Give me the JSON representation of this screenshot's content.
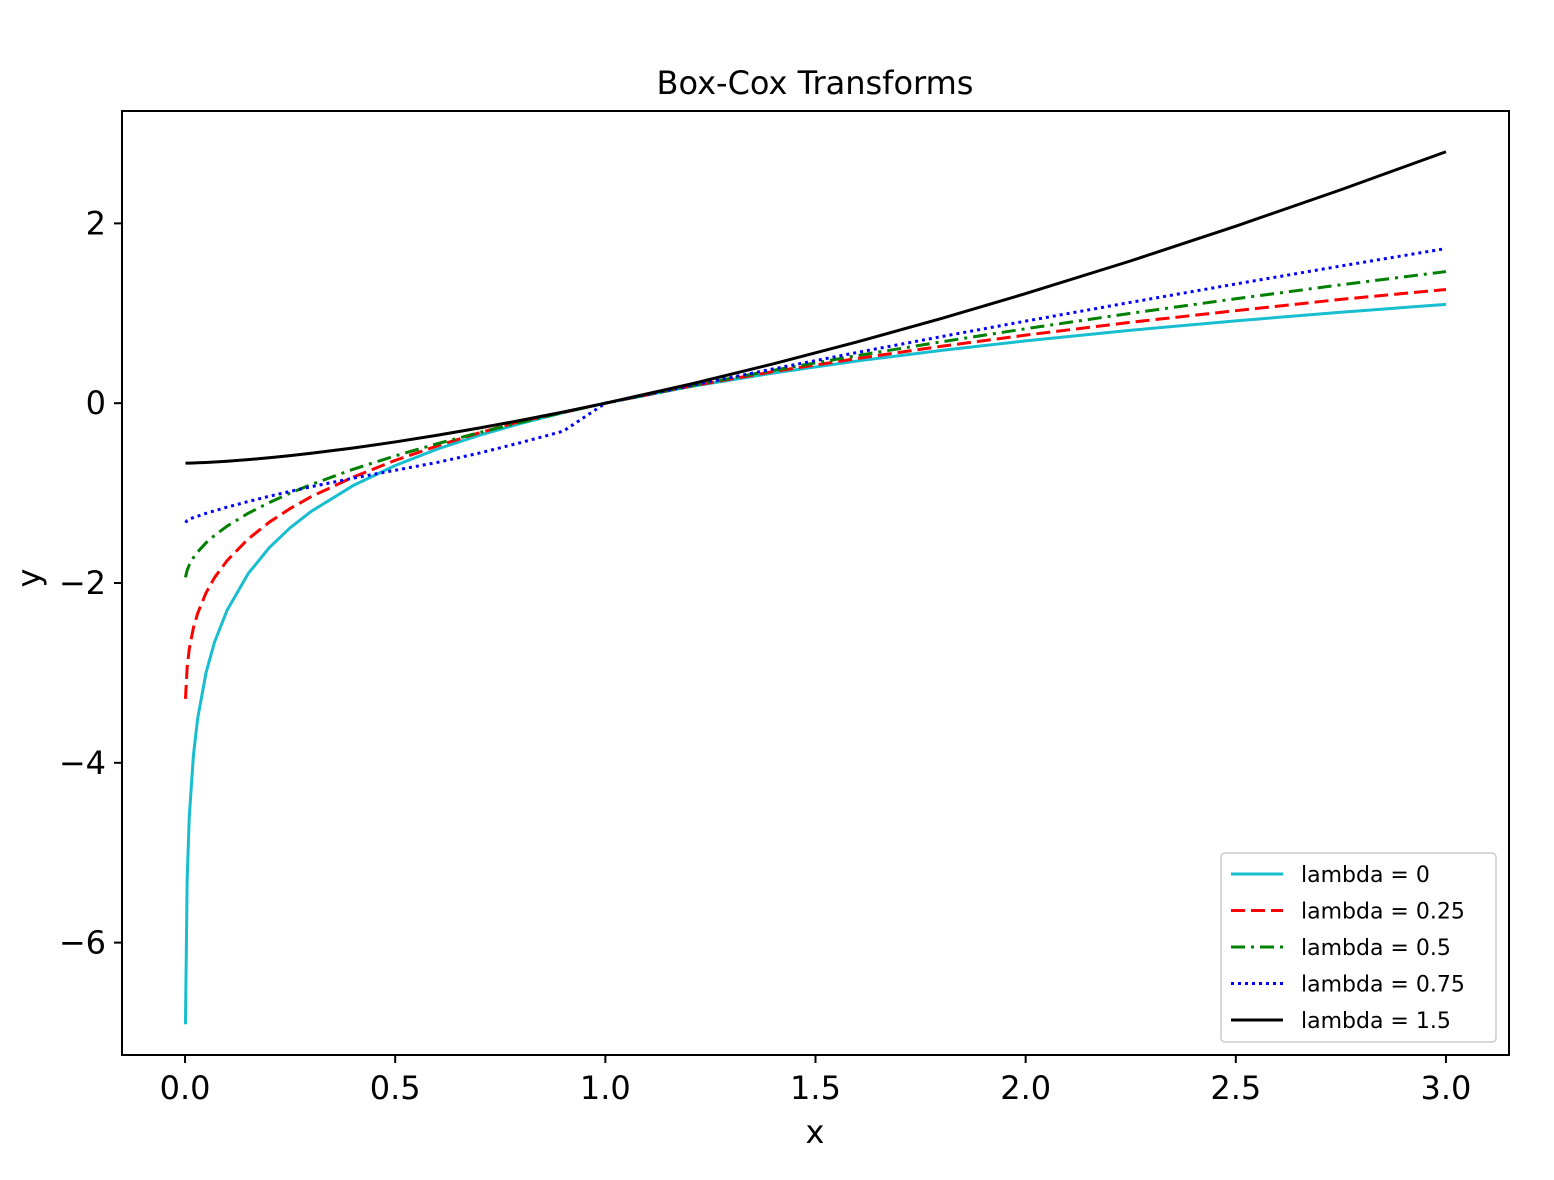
{
  "chart_data": {
    "type": "line",
    "title": "Box-Cox Transforms",
    "xlabel": "x",
    "ylabel": "y",
    "xlim": [
      -0.15,
      3.15
    ],
    "ylim": [
      -7.25,
      3.25
    ],
    "x_ticks": [
      {
        "value": 0.0,
        "label": "0.0"
      },
      {
        "value": 0.5,
        "label": "0.5"
      },
      {
        "value": 1.0,
        "label": "1.0"
      },
      {
        "value": 1.5,
        "label": "1.5"
      },
      {
        "value": 2.0,
        "label": "2.0"
      },
      {
        "value": 2.5,
        "label": "2.5"
      },
      {
        "value": 3.0,
        "label": "3.0"
      }
    ],
    "y_ticks": [
      {
        "value": -6,
        "label": "−6"
      },
      {
        "value": -4,
        "label": "−4"
      },
      {
        "value": -2,
        "label": "−2"
      },
      {
        "value": 0,
        "label": "0"
      },
      {
        "value": 2,
        "label": "2"
      }
    ],
    "grid": false,
    "legend_position": "lower-right",
    "x": [
      0.001,
      0.005,
      0.01,
      0.02,
      0.03,
      0.05,
      0.07,
      0.1,
      0.15,
      0.2,
      0.25,
      0.3,
      0.4,
      0.5,
      0.6,
      0.7,
      0.8,
      0.9,
      1.0,
      1.2,
      1.4,
      1.6,
      1.8,
      2.0,
      2.25,
      2.5,
      2.75,
      3.0
    ],
    "series": [
      {
        "name": "lambda = 0",
        "color": "#17becf",
        "style": "solid",
        "values": [
          -6.908,
          -5.298,
          -4.605,
          -3.912,
          -3.507,
          -2.996,
          -2.659,
          -2.303,
          -1.897,
          -1.609,
          -1.386,
          -1.204,
          -0.916,
          -0.693,
          -0.511,
          -0.357,
          -0.223,
          -0.105,
          0.0,
          0.182,
          0.336,
          0.47,
          0.588,
          0.693,
          0.811,
          0.916,
          1.012,
          1.099
        ]
      },
      {
        "name": "lambda = 0.25",
        "color": "#ff0000",
        "style": "dashed",
        "values": [
          -3.289,
          -2.941,
          -2.735,
          -2.496,
          -2.338,
          -2.109,
          -1.941,
          -1.751,
          -1.511,
          -1.325,
          -1.172,
          -1.04,
          -0.822,
          -0.636,
          -0.475,
          -0.33,
          -0.2,
          -0.103,
          0.0,
          0.187,
          0.352,
          0.498,
          0.633,
          0.757,
          0.9,
          1.029,
          1.155,
          1.265
        ]
      },
      {
        "name": "lambda = 0.5",
        "color": "#008000",
        "style": "dashdot",
        "values": [
          -1.937,
          -1.859,
          -1.8,
          -1.717,
          -1.654,
          -1.553,
          -1.471,
          -1.368,
          -1.225,
          -1.106,
          -1.0,
          -0.905,
          -0.735,
          -0.586,
          -0.451,
          -0.327,
          -0.211,
          -0.103,
          0.0,
          0.191,
          0.366,
          0.53,
          0.683,
          0.828,
          1.0,
          1.162,
          1.317,
          1.464
        ]
      },
      {
        "name": "lambda = 0.75",
        "color": "#0000ff",
        "style": "dotted",
        "values": [
          -1.328,
          -1.305,
          -1.291,
          -1.272,
          -1.257,
          -1.225,
          -1.197,
          -1.156,
          -1.094,
          -1.036,
          -0.981,
          -0.929,
          -0.834,
          -0.746,
          -0.659,
          -0.555,
          -0.437,
          -0.311,
          0.0,
          0.194,
          0.382,
          0.565,
          0.741,
          0.913,
          1.122,
          1.326,
          1.526,
          1.72
        ]
      },
      {
        "name": "lambda = 1.5",
        "color": "#000000",
        "style": "solid",
        "values": [
          -0.667,
          -0.667,
          -0.666,
          -0.665,
          -0.663,
          -0.659,
          -0.654,
          -0.646,
          -0.628,
          -0.607,
          -0.583,
          -0.557,
          -0.498,
          -0.431,
          -0.357,
          -0.276,
          -0.19,
          -0.098,
          0.0,
          0.209,
          0.438,
          0.683,
          0.943,
          1.219,
          1.583,
          1.969,
          2.374,
          2.797
        ]
      }
    ]
  }
}
